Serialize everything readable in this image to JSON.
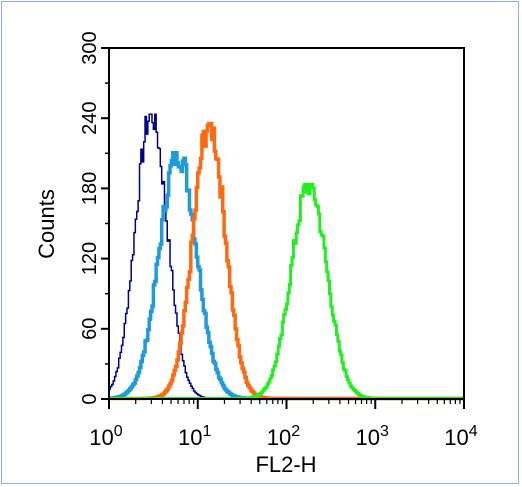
{
  "chart_data": {
    "type": "histogram",
    "xlabel": "FL2-H",
    "ylabel": "Counts",
    "x_scale": "log",
    "xlim": [
      1,
      10000
    ],
    "ylim": [
      0,
      300
    ],
    "grid": false,
    "legend": "none",
    "x_ticks": [
      {
        "value": 1,
        "base": "10",
        "exp": "0"
      },
      {
        "value": 10,
        "base": "10",
        "exp": "1"
      },
      {
        "value": 100,
        "base": "10",
        "exp": "2"
      },
      {
        "value": 1000,
        "base": "10",
        "exp": "3"
      },
      {
        "value": 10000,
        "base": "10",
        "exp": "4"
      }
    ],
    "y_ticks": [
      0,
      60,
      120,
      180,
      240,
      300
    ],
    "y_tick_labels": [
      "0",
      "60",
      "120",
      "180",
      "240",
      "300"
    ],
    "series": [
      {
        "color": "#00008b",
        "peak_x": 3.0,
        "peak_y": 243,
        "spread": 0.18,
        "stroke": 1.5
      },
      {
        "color": "#1e9bdc",
        "peak_x": 6.0,
        "peak_y": 210,
        "spread": 0.21,
        "stroke": 3.5
      },
      {
        "color": "#ff6a10",
        "peak_x": 13.5,
        "peak_y": 235,
        "spread": 0.18,
        "stroke": 3.5
      },
      {
        "color": "#22ee22",
        "peak_x": 180,
        "peak_y": 183,
        "spread": 0.2,
        "stroke": 3.0
      }
    ]
  }
}
